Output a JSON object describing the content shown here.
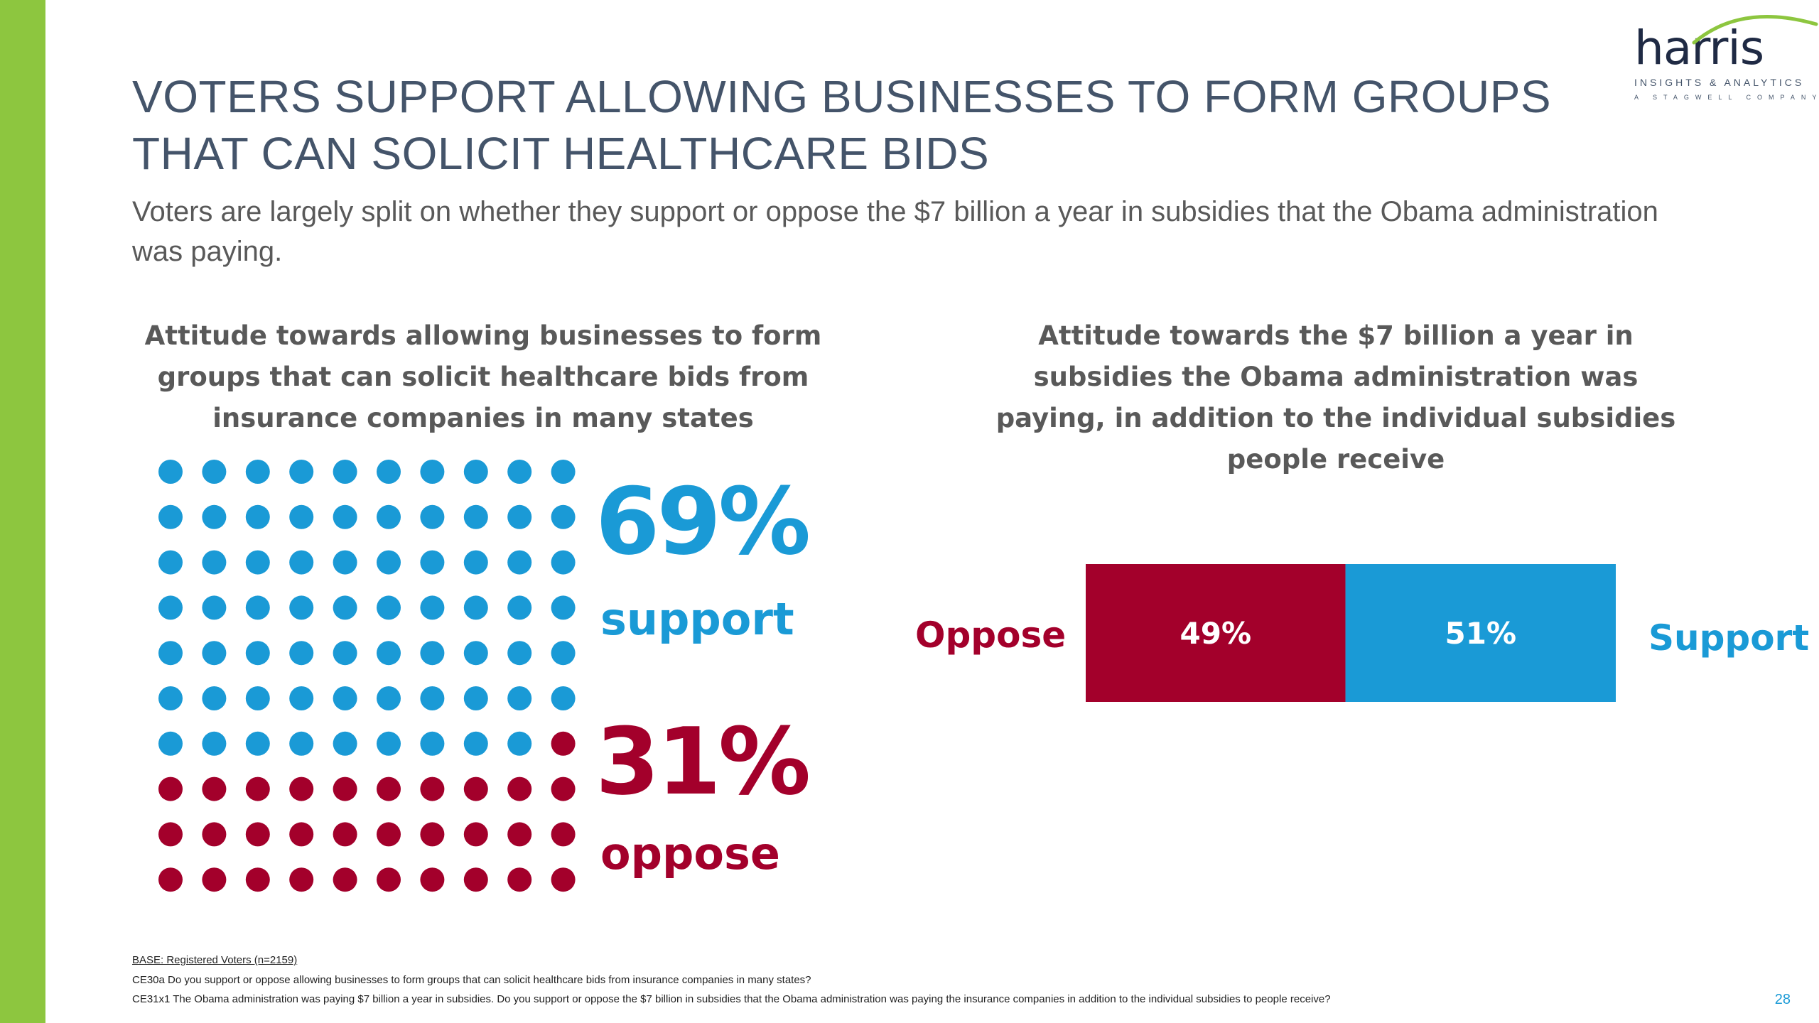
{
  "colors": {
    "brand_green": "#8dc63f",
    "support_blue": "#1a9ad6",
    "oppose_red": "#a3002b",
    "title_slate": "#44546a",
    "text_gray": "#595959"
  },
  "logo": {
    "name": "harris",
    "tagline": "INSIGHTS & ANALYTICS",
    "company": "A STAGWELL COMPANY"
  },
  "slide": {
    "title": "VOTERS SUPPORT ALLOWING BUSINESSES TO FORM GROUPS THAT CAN SOLICIT HEALTHCARE BIDS",
    "subtitle": "Voters are largely split on whether they support or oppose the $7 billion a year in subsidies that the Obama administration was paying.",
    "page_number": "28"
  },
  "left_chart": {
    "title": "Attitude towards allowing businesses to form groups that can solicit healthcare bids from insurance companies in many states",
    "support_pct": "69%",
    "support_label": "support",
    "oppose_pct": "31%",
    "oppose_label": "oppose"
  },
  "right_chart": {
    "title": "Attitude towards the $7 billion a year in subsidies the Obama administration was paying, in addition to the individual subsidies people receive",
    "oppose_label": "Oppose",
    "support_label": "Support"
  },
  "chart_data": [
    {
      "type": "waffle",
      "grid": {
        "rows": 10,
        "cols": 10
      },
      "categories": [
        "support",
        "oppose"
      ],
      "values": [
        69,
        31
      ]
    },
    {
      "type": "bar",
      "orientation": "horizontal-stacked",
      "categories": [
        "Oppose",
        "Support"
      ],
      "values": [
        49,
        51
      ],
      "data_labels": [
        "49%",
        "51%"
      ],
      "xlim": [
        0,
        100
      ]
    }
  ],
  "footnotes": {
    "base": "BASE: Registered Voters (n=2159)",
    "q1": "CE30a Do you support or oppose allowing businesses to form groups that can solicit healthcare bids from insurance companies in many states?",
    "q2": "CE31x1 The Obama administration was paying $7 billion a year in subsidies. Do you support or oppose the $7 billion in subsidies that the Obama administration was paying the insurance companies in addition to the individual subsidies to people receive?"
  }
}
